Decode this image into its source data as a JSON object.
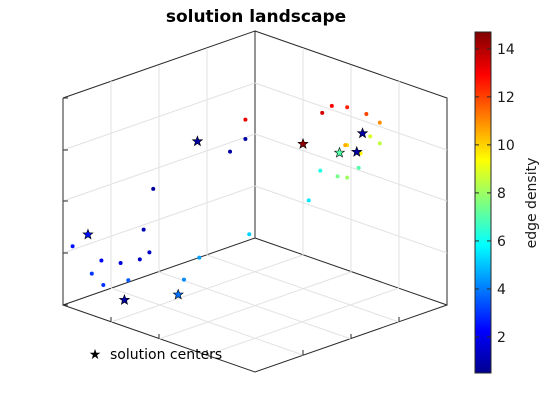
{
  "chart_data": {
    "type": "scatter",
    "projection": "3d",
    "title": "solution landscape",
    "colorbar": {
      "label": "edge density",
      "min": 0.5,
      "max": 14.7,
      "colormap": "jet",
      "ticks": [
        "2",
        "4",
        "6",
        "8",
        "10",
        "12",
        "14"
      ]
    },
    "legend": {
      "entries": [
        "solution centers"
      ],
      "placement": "bottom-left"
    },
    "grid": true,
    "axis_ranges": {
      "x": [
        0,
        1
      ],
      "y": [
        0,
        1
      ],
      "z": [
        0,
        1
      ]
    },
    "series": [
      {
        "marker": "dot",
        "points": [
          {
            "x": 0.25,
            "y": 0.2,
            "z": 0.98,
            "c": 1.0
          },
          {
            "x": 0.35,
            "y": 0.22,
            "z": 0.88,
            "c": 1.0
          },
          {
            "x": 0.55,
            "y": 0.02,
            "z": 0.7,
            "c": 1.0
          },
          {
            "x": 0.58,
            "y": 0.0,
            "z": 0.5,
            "c": 1.2
          },
          {
            "x": 0.55,
            "y": 0.0,
            "z": 0.4,
            "c": 1.5
          },
          {
            "x": 0.6,
            "y": 0.0,
            "z": 0.35,
            "c": 1.5
          },
          {
            "x": 0.7,
            "y": 0.0,
            "z": 0.3,
            "c": 1.8
          },
          {
            "x": 0.8,
            "y": 0.0,
            "z": 0.28,
            "c": 2.2
          },
          {
            "x": 0.95,
            "y": 0.0,
            "z": 0.3,
            "c": 2.5
          },
          {
            "x": 0.85,
            "y": 0.0,
            "z": 0.2,
            "c": 3.0
          },
          {
            "x": 0.89,
            "y": 0.1,
            "z": 0.1,
            "c": 3.0
          },
          {
            "x": 0.86,
            "y": 0.2,
            "z": 0.1,
            "c": 3.5
          },
          {
            "x": 0.72,
            "y": 0.35,
            "z": 0.1,
            "c": 4.2
          },
          {
            "x": 0.69,
            "y": 0.4,
            "z": 0.2,
            "c": 4.5
          },
          {
            "x": 0.58,
            "y": 0.55,
            "z": 0.3,
            "c": 5.2
          },
          {
            "x": 0.6,
            "y": 0.88,
            "z": 0.35,
            "c": 5.5
          },
          {
            "x": 0.56,
            "y": 0.9,
            "z": 0.5,
            "c": 6.2
          },
          {
            "x": 0.45,
            "y": 0.99,
            "z": 0.52,
            "c": 7.0
          },
          {
            "x": 0.55,
            "y": 0.98,
            "z": 0.45,
            "c": 7.5
          },
          {
            "x": 0.5,
            "y": 0.98,
            "z": 0.46,
            "c": 8.0
          },
          {
            "x": 0.3,
            "y": 0.95,
            "z": 0.7,
            "c": 8.5
          },
          {
            "x": 0.3,
            "y": 0.9,
            "z": 0.75,
            "c": 8.8
          },
          {
            "x": 0.4,
            "y": 0.95,
            "z": 0.62,
            "c": 9.5
          },
          {
            "x": 0.48,
            "y": 0.96,
            "z": 0.63,
            "c": 9.8
          },
          {
            "x": 0.5,
            "y": 0.97,
            "z": 0.62,
            "c": 10.5
          },
          {
            "x": 0.3,
            "y": 0.95,
            "z": 0.8,
            "c": 11.0
          },
          {
            "x": 0.4,
            "y": 0.98,
            "z": 0.8,
            "c": 12.0
          },
          {
            "x": 0.5,
            "y": 0.98,
            "z": 0.8,
            "c": 12.5
          },
          {
            "x": 0.55,
            "y": 0.95,
            "z": 0.8,
            "c": 13.0
          },
          {
            "x": 0.6,
            "y": 0.95,
            "z": 0.75,
            "c": 13.5
          },
          {
            "x": 0.75,
            "y": 0.7,
            "z": 0.75,
            "c": 13.2
          }
        ]
      },
      {
        "name": "solution centers",
        "marker": "star",
        "points": [
          {
            "x": 0.45,
            "y": 0.15,
            "z": 0.92,
            "c": 1.0
          },
          {
            "x": 0.92,
            "y": 0.05,
            "z": 0.35,
            "c": 2.5
          },
          {
            "x": 0.8,
            "y": 0.12,
            "z": 0.05,
            "c": 1.0
          },
          {
            "x": 0.7,
            "y": 0.3,
            "z": 0.05,
            "c": 3.8
          },
          {
            "x": 0.52,
            "y": 0.96,
            "z": 0.58,
            "c": 7.0
          },
          {
            "x": 0.45,
            "y": 0.98,
            "z": 0.6,
            "c": 1.0
          },
          {
            "x": 0.42,
            "y": 0.98,
            "z": 0.7,
            "c": 1.0
          },
          {
            "x": 0.65,
            "y": 0.9,
            "z": 0.6,
            "c": 14.5
          }
        ]
      }
    ]
  }
}
